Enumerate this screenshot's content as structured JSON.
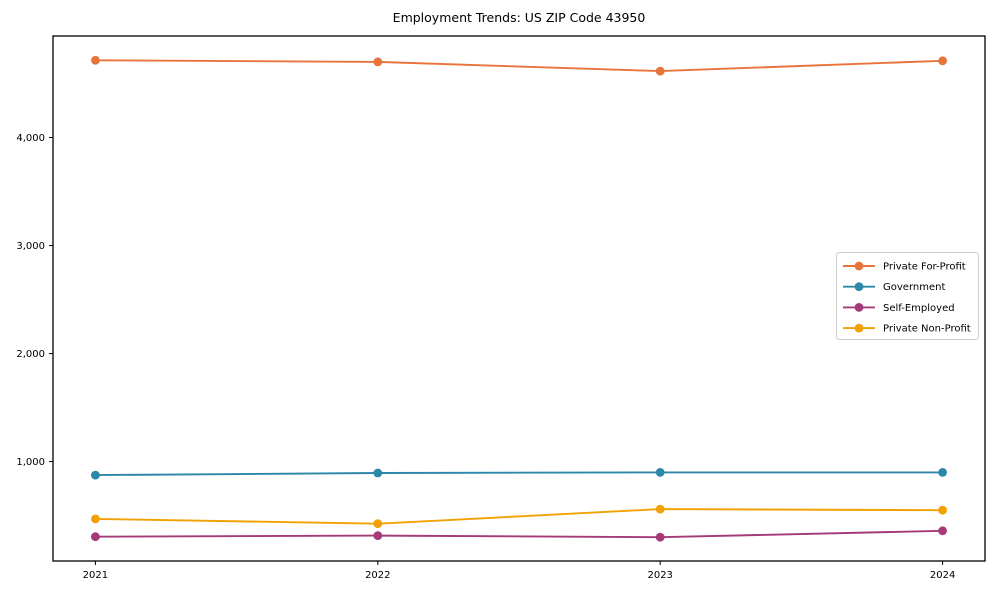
{
  "title": "Employment Trends: US ZIP Code 43950",
  "colors": {
    "private_for_profit": "#e8743b",
    "government": "#2d87a9",
    "self_employed": "#a53a78",
    "private_non_profit": "#f2a104",
    "spine": "#000000",
    "legend_border": "#cccccc",
    "background": "#ffffff"
  },
  "chart_data": {
    "type": "line",
    "title": "Employment Trends: US ZIP Code 43950",
    "xlabel": "",
    "ylabel": "",
    "x": [
      2021,
      2022,
      2023,
      2024
    ],
    "xtick_labels": [
      "2021",
      "2022",
      "2023",
      "2024"
    ],
    "yticks": [
      1000,
      2000,
      3000,
      4000
    ],
    "ytick_labels": [
      "1,000",
      "2,000",
      "3,000",
      "4,000"
    ],
    "xlim": [
      2020.85,
      2024.15
    ],
    "ylim": [
      80,
      4940
    ],
    "grid": false,
    "marker": "circle",
    "legend_position": "center-right",
    "series": [
      {
        "name": "Private For-Profit",
        "color": "#e8743b",
        "values": [
          4715,
          4700,
          4615,
          4710
        ]
      },
      {
        "name": "Government",
        "color": "#2d87a9",
        "values": [
          875,
          895,
          900,
          900
        ]
      },
      {
        "name": "Self-Employed",
        "color": "#a53a78",
        "values": [
          305,
          315,
          300,
          360
        ]
      },
      {
        "name": "Private Non-Profit",
        "color": "#f2a104",
        "values": [
          470,
          425,
          560,
          550
        ]
      }
    ]
  }
}
